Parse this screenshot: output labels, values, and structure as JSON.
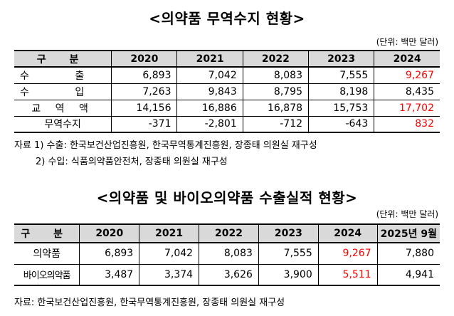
{
  "table1": {
    "title": "<의약품 무역수지 현황>",
    "unit": "(단위: 백만 달러)",
    "headers": [
      "구 분",
      "2020",
      "2021",
      "2022",
      "2023",
      "2024"
    ],
    "rows": [
      {
        "label": "수 출",
        "values": [
          "6,893",
          "7,042",
          "8,083",
          "7,555",
          "9,267"
        ]
      },
      {
        "label": "수 입",
        "values": [
          "7,263",
          "9,843",
          "8,795",
          "8,198",
          "8,435"
        ]
      },
      {
        "label": "교 역 액",
        "values": [
          "14,156",
          "16,886",
          "16,878",
          "15,753",
          "17,702"
        ]
      },
      {
        "label": "무역수지",
        "values": [
          "-371",
          "-2,801",
          "-712",
          "-643",
          "832"
        ]
      }
    ],
    "notes": [
      "자료 1) 수출: 한국보건산업진흥원, 한국무역통계진흥원, 장종태 의원실 재구성",
      "2) 수입: 식품의약품안전처, 장종태 의원실 재구성"
    ]
  },
  "table2": {
    "title": "<의약품 및 바이오의약품 수출실적 현황>",
    "unit": "(단위: 백만 달러)",
    "headers": [
      "구 분",
      "2020",
      "2021",
      "2022",
      "2023",
      "2024",
      "2025년 9월"
    ],
    "rows": [
      {
        "label": "의약품",
        "values": [
          "6,893",
          "7,042",
          "8,083",
          "7,555",
          "9,267",
          "7,880"
        ]
      },
      {
        "label": "바이오의약품",
        "values": [
          "3,487",
          "3,374",
          "3,626",
          "3,900",
          "5,511",
          "4,941"
        ]
      }
    ],
    "note": "자료: 한국보건산업진흥원, 한국무역통계진흥원, 장종태 의원실 재구성"
  },
  "colors": {
    "highlight": "#ff0000",
    "header_bg": "#d9d9d9"
  }
}
